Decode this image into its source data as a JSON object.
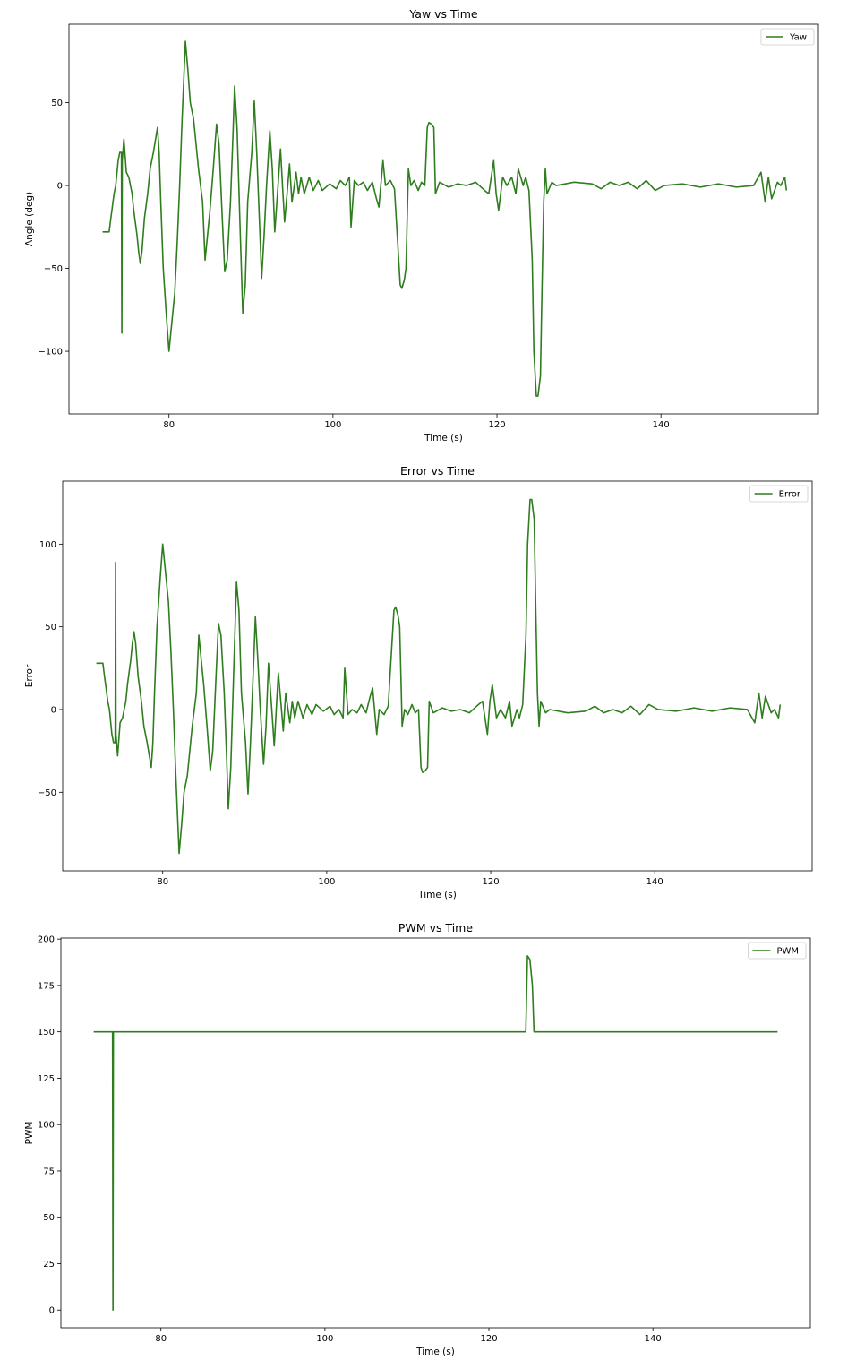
{
  "chart_data": [
    {
      "type": "line",
      "title": "Yaw vs Time",
      "xlabel": "Time (s)",
      "ylabel": "Angle (deg)",
      "x": [
        71.9,
        72.7,
        72.9,
        73.3,
        73.5,
        73.8,
        74.0,
        74.2,
        74.25,
        74.3,
        74.5,
        74.8,
        75.1,
        75.5,
        75.7,
        76.1,
        76.3,
        76.5,
        76.7,
        77.0,
        77.4,
        77.7,
        78.1,
        78.6,
        78.8,
        79.0,
        79.3,
        79.7,
        80.0,
        80.3,
        80.7,
        81.0,
        81.3,
        81.6,
        82.0,
        82.3,
        82.6,
        83.0,
        83.3,
        83.6,
        84.1,
        84.4,
        84.7,
        85.0,
        85.4,
        85.8,
        86.1,
        86.5,
        86.8,
        87.1,
        87.5,
        87.8,
        88.0,
        88.3,
        88.7,
        89.0,
        89.3,
        89.6,
        90.1,
        90.4,
        90.7,
        91.1,
        91.3,
        91.6,
        91.9,
        92.3,
        92.6,
        92.9,
        93.3,
        93.6,
        93.9,
        94.1,
        94.4,
        94.7,
        95.0,
        95.2,
        95.5,
        95.8,
        96.1,
        96.5,
        97.1,
        97.6,
        98.2,
        98.7,
        99.6,
        100.4,
        100.9,
        101.5,
        102.0,
        102.2,
        102.6,
        103.1,
        103.7,
        104.2,
        104.8,
        105.3,
        105.6,
        106.1,
        106.4,
        107.0,
        107.5,
        108.2,
        108.4,
        108.7,
        108.9,
        109.2,
        109.5,
        109.9,
        110.4,
        110.8,
        111.2,
        111.5,
        111.7,
        112.0,
        112.3,
        112.5,
        113.0,
        114.1,
        115.2,
        116.3,
        117.4,
        118.5,
        119.0,
        119.6,
        119.9,
        120.2,
        120.7,
        121.2,
        121.8,
        122.3,
        122.6,
        123.2,
        123.5,
        123.9,
        124.3,
        124.5,
        124.8,
        125.0,
        125.3,
        125.5,
        125.7,
        125.9,
        126.1,
        126.7,
        127.2,
        129.4,
        131.6,
        132.7,
        133.8,
        134.9,
        136.0,
        137.1,
        138.2,
        139.3,
        140.4,
        142.6,
        144.8,
        147.0,
        149.2,
        151.3,
        152.2,
        152.7,
        153.1,
        153.5,
        154.2,
        154.6,
        155.1,
        155.3
      ],
      "series": [
        {
          "name": "Yaw",
          "color": "#2e7d1e",
          "values": [
            -28,
            -28,
            -20,
            -5,
            0,
            15,
            20,
            20,
            -89,
            15,
            28,
            8,
            5,
            -5,
            -15,
            -30,
            -40,
            -47,
            -40,
            -20,
            -5,
            10,
            20,
            35,
            20,
            -10,
            -50,
            -80,
            -100,
            -85,
            -65,
            -35,
            0,
            40,
            87,
            70,
            50,
            40,
            25,
            10,
            -10,
            -45,
            -30,
            -15,
            10,
            37,
            25,
            -20,
            -52,
            -45,
            -10,
            30,
            60,
            35,
            -30,
            -77,
            -60,
            -10,
            20,
            51,
            20,
            -30,
            -56,
            -30,
            0,
            33,
            10,
            -28,
            0,
            22,
            -5,
            -22,
            -5,
            13,
            -10,
            -3,
            8,
            -5,
            5,
            -5,
            5,
            -3,
            3,
            -3,
            1,
            -2,
            3,
            0,
            5,
            -25,
            3,
            0,
            2,
            -3,
            2,
            -8,
            -13,
            15,
            0,
            3,
            -2,
            -60,
            -62,
            -57,
            -50,
            10,
            0,
            3,
            -3,
            2,
            0,
            35,
            38,
            37,
            35,
            -5,
            2,
            -1,
            1,
            0,
            2,
            -3,
            -5,
            15,
            -5,
            -15,
            5,
            0,
            5,
            -5,
            10,
            0,
            5,
            -3,
            -45,
            -100,
            -127,
            -127,
            -115,
            -60,
            -10,
            10,
            -5,
            2,
            0,
            2,
            1,
            -2,
            2,
            0,
            2,
            -2,
            3,
            -3,
            0,
            1,
            -1,
            1,
            -1,
            0,
            8,
            -10,
            5,
            -8,
            2,
            0,
            5,
            -3
          ]
        }
      ],
      "xlim": [
        67.8,
        159.2
      ],
      "ylim": [
        -137.8,
        97.3
      ],
      "xticks": [
        80,
        100,
        120,
        140
      ],
      "yticks": [
        {
          "value": -100,
          "label": "−100"
        },
        {
          "value": -50,
          "label": "−50"
        },
        0,
        50
      ],
      "legend": "upper right"
    },
    {
      "type": "line",
      "title": "Error vs Time",
      "xlabel": "Time (s)",
      "ylabel": "Error",
      "x": [
        71.9,
        72.7,
        72.9,
        73.3,
        73.5,
        73.8,
        74.0,
        74.2,
        74.25,
        74.3,
        74.5,
        74.8,
        75.1,
        75.5,
        75.7,
        76.1,
        76.3,
        76.5,
        76.7,
        77.0,
        77.4,
        77.7,
        78.1,
        78.6,
        78.8,
        79.0,
        79.3,
        79.7,
        80.0,
        80.3,
        80.7,
        81.0,
        81.3,
        81.6,
        82.0,
        82.3,
        82.6,
        83.0,
        83.3,
        83.6,
        84.1,
        84.4,
        84.7,
        85.0,
        85.4,
        85.8,
        86.1,
        86.5,
        86.8,
        87.1,
        87.5,
        87.8,
        88.0,
        88.3,
        88.7,
        89.0,
        89.3,
        89.6,
        90.1,
        90.4,
        90.7,
        91.1,
        91.3,
        91.6,
        91.9,
        92.3,
        92.6,
        92.9,
        93.3,
        93.6,
        93.9,
        94.1,
        94.4,
        94.7,
        95.0,
        95.2,
        95.5,
        95.8,
        96.1,
        96.5,
        97.1,
        97.6,
        98.2,
        98.7,
        99.6,
        100.4,
        100.9,
        101.5,
        102.0,
        102.2,
        102.6,
        103.1,
        103.7,
        104.2,
        104.8,
        105.3,
        105.6,
        106.1,
        106.4,
        107.0,
        107.5,
        108.2,
        108.4,
        108.7,
        108.9,
        109.2,
        109.5,
        109.9,
        110.4,
        110.8,
        111.2,
        111.5,
        111.7,
        112.0,
        112.3,
        112.5,
        113.0,
        114.1,
        115.2,
        116.3,
        117.4,
        118.5,
        119.0,
        119.6,
        119.9,
        120.2,
        120.7,
        121.2,
        121.8,
        122.3,
        122.6,
        123.2,
        123.5,
        123.9,
        124.3,
        124.5,
        124.8,
        125.0,
        125.3,
        125.5,
        125.7,
        125.9,
        126.1,
        126.7,
        127.2,
        129.4,
        131.6,
        132.7,
        133.8,
        134.9,
        136.0,
        137.1,
        138.2,
        139.3,
        140.4,
        142.6,
        144.8,
        147.0,
        149.2,
        151.3,
        152.2,
        152.7,
        153.1,
        153.5,
        154.2,
        154.6,
        155.1,
        155.3
      ],
      "series": [
        {
          "name": "Error",
          "color": "#2e7d1e",
          "values": [
            28,
            28,
            20,
            5,
            0,
            -15,
            -20,
            -20,
            89,
            -15,
            -28,
            -8,
            -5,
            5,
            15,
            30,
            40,
            47,
            40,
            20,
            5,
            -10,
            -20,
            -35,
            -20,
            10,
            50,
            80,
            100,
            85,
            65,
            35,
            0,
            -40,
            -87,
            -70,
            -50,
            -40,
            -25,
            -10,
            10,
            45,
            30,
            15,
            -10,
            -37,
            -25,
            20,
            52,
            45,
            10,
            -30,
            -60,
            -35,
            30,
            77,
            60,
            10,
            -20,
            -51,
            -20,
            30,
            56,
            30,
            0,
            -33,
            -10,
            28,
            0,
            -22,
            5,
            22,
            5,
            -13,
            10,
            3,
            -8,
            5,
            -5,
            5,
            -5,
            3,
            -3,
            3,
            -1,
            2,
            -3,
            0,
            -5,
            25,
            -3,
            0,
            -2,
            3,
            -2,
            8,
            13,
            -15,
            0,
            -3,
            2,
            60,
            62,
            57,
            50,
            -10,
            0,
            -3,
            3,
            -2,
            0,
            -35,
            -38,
            -37,
            -35,
            5,
            -2,
            1,
            -1,
            0,
            -2,
            3,
            5,
            -15,
            5,
            15,
            -5,
            0,
            -5,
            5,
            -10,
            0,
            -5,
            3,
            45,
            100,
            127,
            127,
            115,
            60,
            10,
            -10,
            5,
            -2,
            0,
            -2,
            -1,
            2,
            -2,
            0,
            -2,
            2,
            -3,
            3,
            0,
            -1,
            1,
            -1,
            1,
            0,
            -8,
            10,
            -5,
            8,
            -2,
            0,
            -5,
            3
          ]
        }
      ],
      "xlim": [
        67.8,
        159.2
      ],
      "ylim": [
        -97.5,
        138.1
      ],
      "xticks": [
        80,
        100,
        120,
        140
      ],
      "yticks": [
        {
          "value": -50,
          "label": "−50"
        },
        0,
        50,
        100
      ],
      "legend": "upper right"
    },
    {
      "type": "line",
      "title": "PWM vs Time",
      "xlabel": "Time (s)",
      "ylabel": "PWM",
      "x": [
        71.8,
        74.1,
        74.15,
        74.2,
        124.5,
        124.7,
        125.0,
        125.3,
        125.5,
        155.2
      ],
      "series": [
        {
          "name": "PWM",
          "color": "#2e7d1e",
          "values": [
            150,
            150,
            0,
            150,
            150,
            191,
            189,
            175,
            150,
            150
          ]
        }
      ],
      "xlim": [
        67.8,
        159.2
      ],
      "ylim": [
        -9.55,
        200.55
      ],
      "xticks": [
        80,
        100,
        120,
        140
      ],
      "yticks": [
        0,
        25,
        50,
        75,
        100,
        125,
        150,
        175,
        200
      ],
      "legend": "upper right"
    }
  ]
}
